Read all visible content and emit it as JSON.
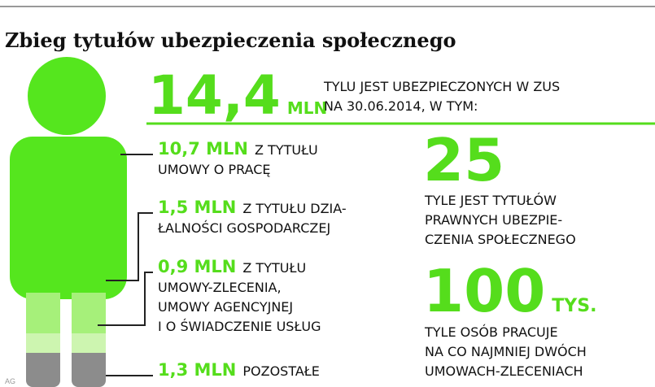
{
  "title": "Zbieg tytułów ubezpieczenia społecznego",
  "headline": {
    "value": "14,4",
    "unit": "MLN",
    "lines": [
      "TYLU JEST UBEZPIECZONYCH W ZUS",
      "NA 30.06.2014, W TYM:"
    ]
  },
  "items": [
    {
      "value": "10,7 MLN",
      "lines": [
        "Z TYTUŁU",
        "UMOWY O PRACĘ"
      ]
    },
    {
      "value": "1,5 MLN",
      "lines": [
        "Z TYTUŁU DZIA-",
        "ŁALNOŚCI GOSPODARCZEJ"
      ]
    },
    {
      "value": "0,9 MLN",
      "lines": [
        "Z TYTUŁU",
        "UMOWY-ZLECENIA,",
        "UMOWY AGENCYJNEJ",
        "I O ŚWIADCZENIE USŁUG"
      ]
    },
    {
      "value": "1,3 MLN",
      "lines": [
        "POZOSTAŁE"
      ]
    }
  ],
  "stats": [
    {
      "value": "25",
      "lines": [
        "TYLE JEST TYTUŁÓW",
        "PRAWNYCH UBEZPIE-",
        "CZENIA SPOŁECZNEGO"
      ]
    },
    {
      "value": "100",
      "unit": "TYS.",
      "lines": [
        "TYLE OSÓB PRACUJE",
        "NA CO NAJMNIEJ DWÓCH",
        "UMOWACH-ZLECENIACH"
      ]
    }
  ],
  "credit": "AG"
}
